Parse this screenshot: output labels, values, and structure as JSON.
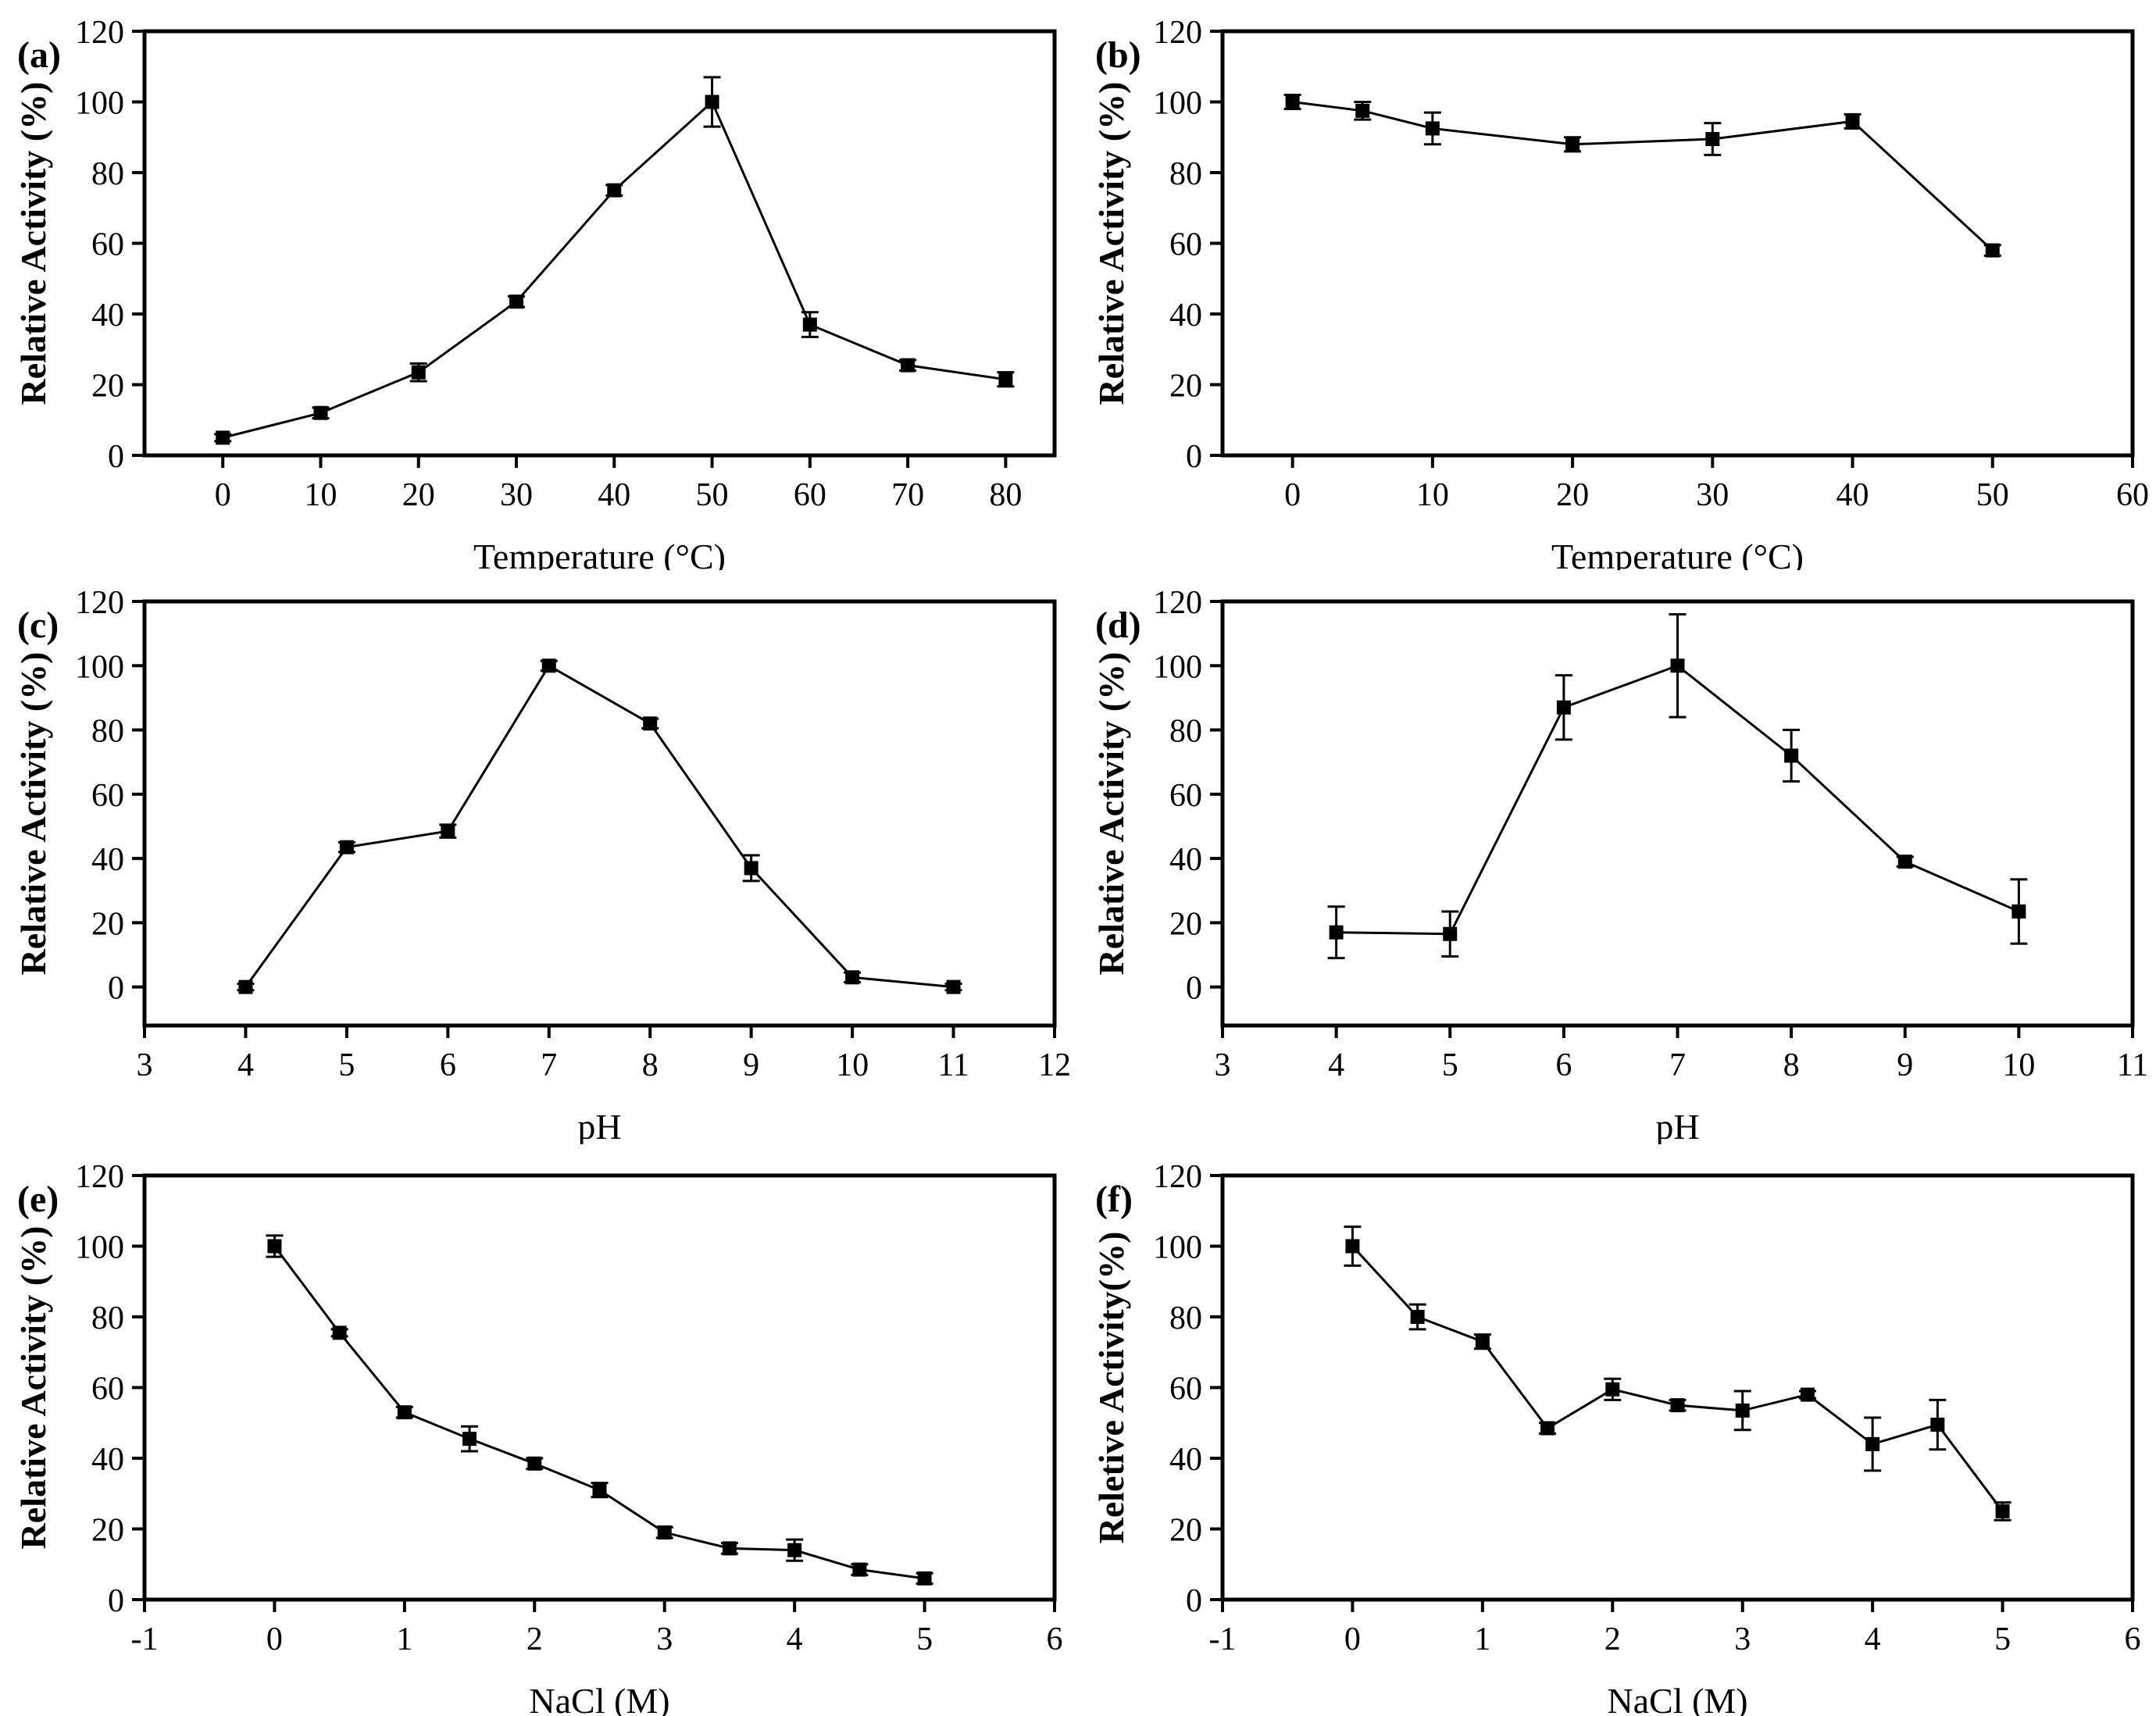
{
  "figure": {
    "background": "#ffffff",
    "line_color": "#000000",
    "marker_color": "#000000",
    "marker_shape": "filled-square",
    "error_bars": "vertical-with-caps"
  },
  "chart_data": [
    {
      "id": "a",
      "panel_label": "(a)",
      "type": "line",
      "title": "",
      "xlabel": "Temperature (°C)",
      "ylabel": "Relative Activity (%)",
      "xlim": [
        -8,
        85
      ],
      "ylim": [
        0,
        120
      ],
      "xticks": [
        0,
        10,
        20,
        30,
        40,
        50,
        60,
        70,
        80
      ],
      "yticks": [
        0,
        20,
        40,
        60,
        80,
        100,
        120
      ],
      "grid": false,
      "legend": "none",
      "series": [
        {
          "name": "relative-activity",
          "x": [
            0,
            10,
            20,
            30,
            40,
            50,
            60,
            70,
            80
          ],
          "y": [
            5,
            12,
            23.5,
            43.5,
            75,
            100,
            37,
            25.5,
            21.5
          ],
          "yerr": [
            1,
            1.5,
            2.5,
            1.5,
            1.5,
            7,
            3.5,
            1.5,
            2
          ]
        }
      ]
    },
    {
      "id": "b",
      "panel_label": "(b)",
      "type": "line",
      "title": "",
      "xlabel": "Temperature (°C)",
      "ylabel": "Relative Activity (%)",
      "xlim": [
        -5,
        60
      ],
      "ylim": [
        0,
        120
      ],
      "xticks": [
        0,
        10,
        20,
        30,
        40,
        50,
        60
      ],
      "yticks": [
        0,
        20,
        40,
        60,
        80,
        100,
        120
      ],
      "grid": false,
      "legend": "none",
      "series": [
        {
          "name": "relative-activity",
          "x": [
            0,
            5,
            10,
            20,
            30,
            40,
            50
          ],
          "y": [
            100,
            97.5,
            92.5,
            88,
            89.5,
            94.5,
            58
          ],
          "yerr": [
            2,
            2.5,
            4.5,
            2,
            4.5,
            2,
            1.5
          ]
        }
      ]
    },
    {
      "id": "c",
      "panel_label": "(c)",
      "type": "line",
      "title": "",
      "xlabel": "pH",
      "ylabel": "Relative Activity (%)",
      "xlim": [
        3,
        12
      ],
      "ylim": [
        -12,
        120
      ],
      "xticks": [
        3,
        4,
        5,
        6,
        7,
        8,
        9,
        10,
        11,
        12
      ],
      "yticks": [
        0,
        20,
        40,
        60,
        80,
        100,
        120
      ],
      "grid": false,
      "legend": "none",
      "series": [
        {
          "name": "relative-activity",
          "x": [
            4,
            5,
            6,
            7,
            8,
            9,
            10,
            11
          ],
          "y": [
            0,
            43.5,
            48.5,
            100,
            82,
            37,
            3,
            0
          ],
          "yerr": [
            1,
            1.5,
            2,
            1.5,
            1.5,
            4,
            1.5,
            1
          ]
        }
      ]
    },
    {
      "id": "d",
      "panel_label": "(d)",
      "type": "line",
      "title": "",
      "xlabel": "pH",
      "ylabel": "Relative Activity (%)",
      "xlim": [
        3,
        11
      ],
      "ylim": [
        -12,
        120
      ],
      "xticks": [
        3,
        4,
        5,
        6,
        7,
        8,
        9,
        10,
        11
      ],
      "yticks": [
        0,
        20,
        40,
        60,
        80,
        100,
        120
      ],
      "grid": false,
      "legend": "none",
      "series": [
        {
          "name": "relative-activity",
          "x": [
            4,
            5,
            6,
            7,
            8,
            9,
            10
          ],
          "y": [
            17,
            16.5,
            87,
            100,
            72,
            39,
            23.5
          ],
          "yerr": [
            8,
            7,
            10,
            16,
            8,
            1.5,
            10
          ]
        }
      ]
    },
    {
      "id": "e",
      "panel_label": "(e)",
      "type": "line",
      "title": "",
      "xlabel": "NaCl (M)",
      "ylabel": "Relative Activity (%)",
      "xlim": [
        -1,
        6
      ],
      "ylim": [
        0,
        120
      ],
      "xticks": [
        -1,
        0,
        1,
        2,
        3,
        4,
        5,
        6
      ],
      "yticks": [
        0,
        20,
        40,
        60,
        80,
        100,
        120
      ],
      "grid": false,
      "legend": "none",
      "series": [
        {
          "name": "relative-activity",
          "x": [
            0,
            0.5,
            1,
            1.5,
            2,
            2.5,
            3,
            3.5,
            4,
            4.5,
            5
          ],
          "y": [
            100,
            75.5,
            53,
            45.5,
            38.5,
            31,
            19,
            14.5,
            14,
            8.5,
            6
          ],
          "yerr": [
            3,
            1,
            1.5,
            3.5,
            1.5,
            2,
            1.5,
            1.5,
            3,
            1.5,
            1.5
          ]
        }
      ]
    },
    {
      "id": "f",
      "panel_label": "(f)",
      "type": "line",
      "title": "",
      "xlabel": "NaCl (M)",
      "ylabel": "Reletive Activity(%)",
      "xlim": [
        -1,
        6
      ],
      "ylim": [
        0,
        120
      ],
      "xticks": [
        -1,
        0,
        1,
        2,
        3,
        4,
        5,
        6
      ],
      "yticks": [
        0,
        20,
        40,
        60,
        80,
        100,
        120
      ],
      "grid": false,
      "legend": "none",
      "series": [
        {
          "name": "relative-activity",
          "x": [
            0,
            0.5,
            1,
            1.5,
            2,
            2.5,
            3,
            3.5,
            4,
            4.5,
            5
          ],
          "y": [
            100,
            80,
            73,
            48.5,
            59.5,
            55,
            53.5,
            58,
            44,
            49.5,
            25
          ],
          "yerr": [
            5.5,
            3.5,
            2,
            1.5,
            3,
            1.5,
            5.5,
            1,
            7.5,
            7,
            2.5
          ]
        }
      ]
    }
  ]
}
